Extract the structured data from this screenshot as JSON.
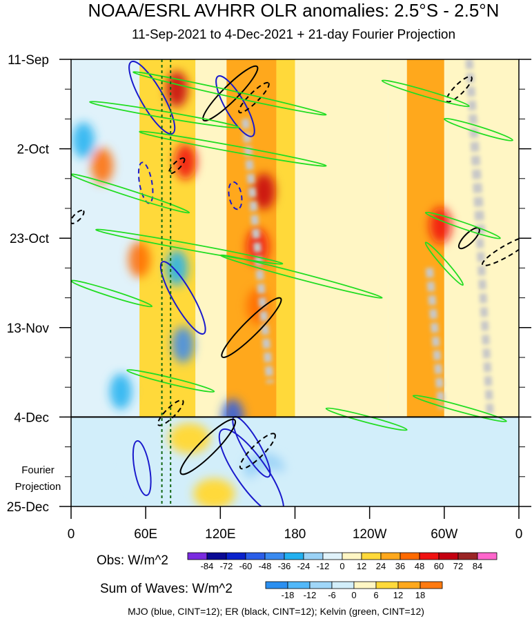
{
  "figure": {
    "title": "NOAA/ESRL AVHRR OLR anomalies: 2.5°S - 2.5°N",
    "subtitle": "11-Sep-2021 to 4-Dec-2021 + 21-day Fourier Projection",
    "projection_label": "Fourier\nProjection",
    "footnote": "MJO (blue, CINT=12); ER (black, CINT=12); Kelvin (green, CINT=12)"
  },
  "legend": {
    "obs": {
      "label": "Obs: W/m^2",
      "ticks": [
        "-84",
        "-72",
        "-60",
        "-48",
        "-36",
        "-24",
        "-12",
        "0",
        "12",
        "24",
        "36",
        "48",
        "60",
        "72",
        "84"
      ],
      "colors": [
        "#7a2be0",
        "#0a0a94",
        "#0a22cc",
        "#2b5ee8",
        "#3a8af0",
        "#22b0f0",
        "#9ad2f6",
        "#e0f2fa",
        "#fff6c4",
        "#ffd93a",
        "#ffa81c",
        "#ff6a00",
        "#f01212",
        "#c40010",
        "#9a2424",
        "#ff66cc"
      ]
    },
    "waves": {
      "label": "Sum of Waves: W/m^2",
      "ticks": [
        "-18",
        "-12",
        "-6",
        "0",
        "6",
        "12",
        "18"
      ],
      "colors": [
        "#2b8ff0",
        "#52b8f8",
        "#a0d6f8",
        "#d2eefa",
        "#fff6c4",
        "#ffd93a",
        "#ffa81c",
        "#ff7a10"
      ]
    }
  },
  "chart_data": {
    "type": "heatmap",
    "x_axis": {
      "label": "",
      "ticks": [
        "0",
        "60E",
        "120E",
        "180",
        "120W",
        "60W",
        "0"
      ],
      "range": [
        0,
        360
      ]
    },
    "y_axis": {
      "label": "",
      "ticks": [
        "11-Sep",
        "2-Oct",
        "23-Oct",
        "13-Nov",
        "4-Dec",
        "25-Dec"
      ],
      "range": [
        "11-Sep-2021",
        "25-Dec-2021"
      ],
      "direction": "time increases downward"
    },
    "observed_period": [
      "11-Sep-2021",
      "4-Dec-2021"
    ],
    "projection_period": [
      "4-Dec-2021",
      "25-Dec-2021"
    ],
    "background_bands": [
      {
        "lon": [
          0,
          55
        ],
        "value": -8
      },
      {
        "lon": [
          55,
          100
        ],
        "value": 18
      },
      {
        "lon": [
          100,
          125
        ],
        "value": 10
      },
      {
        "lon": [
          125,
          165
        ],
        "value": 30
      },
      {
        "lon": [
          165,
          180
        ],
        "value": 20
      },
      {
        "lon": [
          180,
          255
        ],
        "value": 6
      },
      {
        "lon": [
          255,
          270
        ],
        "value": 4
      },
      {
        "lon": [
          270,
          300
        ],
        "value": 24
      },
      {
        "lon": [
          300,
          360
        ],
        "value": 0
      }
    ],
    "warm_patches": [
      {
        "lon": 85,
        "date": "18-Sep",
        "value": 60
      },
      {
        "lon": 92,
        "date": "5-Oct",
        "value": 48
      },
      {
        "lon": 155,
        "date": "12-Oct",
        "value": 60
      },
      {
        "lon": 150,
        "date": "25-Oct",
        "value": 48
      },
      {
        "lon": 150,
        "date": "8-Nov",
        "value": 36
      },
      {
        "lon": 297,
        "date": "20-Oct",
        "value": 48
      },
      {
        "lon": 25,
        "date": "6-Oct",
        "value": 36
      },
      {
        "lon": 55,
        "date": "28-Oct",
        "value": 36
      }
    ],
    "cold_patches": [
      {
        "lon": 10,
        "date": "30-Sep",
        "value": -36
      },
      {
        "lon": 40,
        "date": "28-Nov",
        "value": -36
      },
      {
        "lon": 85,
        "date": "30-Oct",
        "value": -36
      },
      {
        "lon": 90,
        "date": "17-Nov",
        "value": -48
      },
      {
        "lon": 130,
        "date": "4-Dec",
        "value": -60
      }
    ],
    "projection_field": [
      {
        "lon": 155,
        "date": "16-Dec",
        "value": -12
      },
      {
        "lon": 160,
        "date": "20-Dec",
        "value": -6
      },
      {
        "lon": 60,
        "date": "18-Dec",
        "value": -6
      },
      {
        "lon": 25,
        "date": "9-Dec",
        "value": -6
      },
      {
        "lon": 115,
        "date": "22-Dec",
        "value": 6
      },
      {
        "lon": 95,
        "date": "9-Dec",
        "value": 6
      }
    ],
    "dashed_reference_lines_lon": [
      73,
      80
    ],
    "no_data_swaths": [
      {
        "start": [
          "11-Sep",
          320
        ],
        "end": [
          "4-Dec",
          337
        ]
      },
      {
        "start": [
          "11-Sep",
          320
        ],
        "end": [
          "22-Oct",
          330
        ]
      },
      {
        "start": [
          "25-Sep",
          140
        ],
        "end": [
          "26-Nov",
          160
        ]
      },
      {
        "start": [
          "30-Oct",
          288
        ],
        "end": [
          "2-Dec",
          298
        ]
      }
    ],
    "mjo_contours": [
      {
        "lon": 65,
        "date": "20-Sep",
        "sign": "negative",
        "len": 120,
        "wid": 32,
        "tilt": 60
      },
      {
        "lon": 132,
        "date": "22-Sep",
        "sign": "negative",
        "len": 100,
        "wid": 28,
        "tilt": 60
      },
      {
        "lon": 90,
        "date": "6-Nov",
        "sign": "negative",
        "len": 120,
        "wid": 28,
        "tilt": 60
      },
      {
        "lon": 57,
        "date": "16-Dec",
        "sign": "negative",
        "len": 80,
        "wid": 22,
        "tilt": 80
      },
      {
        "lon": 145,
        "date": "17-Dec",
        "sign": "negative",
        "len": 150,
        "wid": 44,
        "tilt": 55
      },
      {
        "lon": 145,
        "date": "11-Dec",
        "sign": "negative",
        "len": 100,
        "wid": 24,
        "tilt": 60
      },
      {
        "lon": 60,
        "date": "10-Oct",
        "sign": "positive",
        "len": 60,
        "wid": 18,
        "tilt": 80
      },
      {
        "lon": 132,
        "date": "13-Oct",
        "sign": "positive",
        "len": 40,
        "wid": 18,
        "tilt": 80
      }
    ],
    "er_contours": [
      {
        "lon": 128,
        "date": "19-Sep",
        "sign": "positive",
        "len": 110,
        "wid": 22,
        "tilt": -45
      },
      {
        "lon": 145,
        "date": "13-Nov",
        "sign": "positive",
        "len": 120,
        "wid": 22,
        "tilt": -45
      },
      {
        "lon": 110,
        "date": "11-Dec",
        "sign": "positive",
        "len": 110,
        "wid": 24,
        "tilt": -45
      },
      {
        "lon": 150,
        "date": "12-Dec",
        "sign": "negative",
        "len": 70,
        "wid": 18,
        "tilt": -45
      },
      {
        "lon": 80,
        "date": "3-Dec",
        "sign": "negative",
        "len": 50,
        "wid": 14,
        "tilt": -45
      },
      {
        "lon": 147,
        "date": "20-Sep",
        "sign": "negative",
        "len": 60,
        "wid": 14,
        "tilt": -45
      },
      {
        "lon": 312,
        "date": "18-Sep",
        "sign": "negative",
        "len": 50,
        "wid": 14,
        "tilt": -45
      },
      {
        "lon": 350,
        "date": "26-Oct",
        "sign": "negative",
        "len": 80,
        "wid": 16,
        "tilt": -30
      },
      {
        "lon": 320,
        "date": "23-Oct",
        "sign": "positive",
        "len": 40,
        "wid": 14,
        "tilt": -45
      },
      {
        "lon": 5,
        "date": "18-Oct",
        "sign": "negative",
        "len": 25,
        "wid": 10,
        "tilt": -45
      },
      {
        "lon": 85,
        "date": "6-Oct",
        "sign": "negative",
        "len": 30,
        "wid": 10,
        "tilt": -45
      }
    ],
    "kelvin_contours": [
      {
        "start": [
          "14-Sep",
          50
        ],
        "end": [
          "24-Sep",
          205
        ]
      },
      {
        "start": [
          "21-Sep",
          15
        ],
        "end": [
          "27-Sep",
          135
        ]
      },
      {
        "start": [
          "28-Sep",
          55
        ],
        "end": [
          "6-Oct",
          205
        ]
      },
      {
        "start": [
          "8-Oct",
          0
        ],
        "end": [
          "17-Oct",
          95
        ]
      },
      {
        "start": [
          "21-Oct",
          20
        ],
        "end": [
          "29-Oct",
          170
        ]
      },
      {
        "start": [
          "27-Oct",
          120
        ],
        "end": [
          "6-Nov",
          250
        ]
      },
      {
        "start": [
          "2-Nov",
          0
        ],
        "end": [
          "8-Nov",
          65
        ]
      },
      {
        "start": [
          "23-Nov",
          45
        ],
        "end": [
          "28-Nov",
          115
        ]
      },
      {
        "start": [
          "2-Dec",
          205
        ],
        "end": [
          "7-Dec",
          270
        ]
      },
      {
        "start": [
          "16-Sep",
          250
        ],
        "end": [
          "22-Sep",
          320
        ]
      },
      {
        "start": [
          "25-Sep",
          300
        ],
        "end": [
          "30-Sep",
          355
        ]
      },
      {
        "start": [
          "17-Oct",
          285
        ],
        "end": [
          "23-Oct",
          345
        ]
      },
      {
        "start": [
          "24-Oct",
          285
        ],
        "end": [
          "3-Nov",
          315
        ]
      },
      {
        "start": [
          "29-Nov",
          275
        ],
        "end": [
          "5-Dec",
          350
        ]
      }
    ]
  }
}
